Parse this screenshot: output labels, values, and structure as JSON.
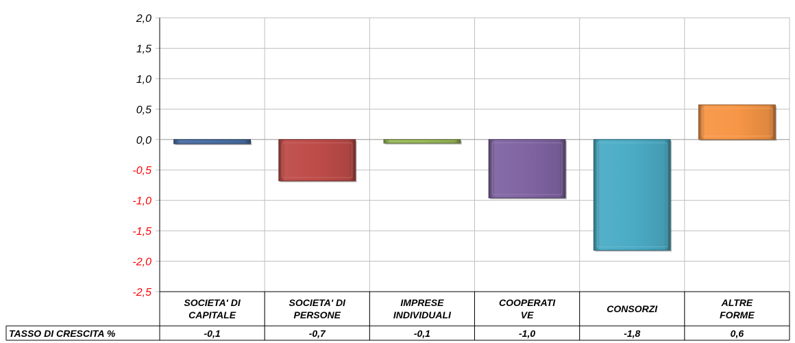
{
  "chart_data": {
    "type": "bar",
    "categories": [
      [
        "SOCIETA' DI",
        "CAPITALE"
      ],
      [
        "SOCIETA' DI",
        "PERSONE"
      ],
      [
        "IMPRESE",
        "INDIVIDUALI"
      ],
      [
        "COOPERATI",
        "VE"
      ],
      [
        "CONSORZI"
      ],
      [
        "ALTRE",
        "FORME"
      ]
    ],
    "values": [
      -0.07,
      -0.68,
      -0.06,
      -0.96,
      -1.82,
      0.57
    ],
    "data_table": {
      "row_label": "TASSO DI CRESCITA %",
      "values": [
        "-0,1",
        "-0,7",
        "-0,1",
        "-1,0",
        "-1,8",
        "0,6"
      ]
    },
    "ylim": [
      -2.5,
      2.0
    ],
    "yticks": [
      "2,0",
      "1,5",
      "1,0",
      "0,5",
      "0,0",
      "-0,5",
      "-1,0",
      "-1,5",
      "-2,0",
      "-2,5"
    ],
    "ytick_values": [
      2.0,
      1.5,
      1.0,
      0.5,
      0.0,
      -0.5,
      -1.0,
      -1.5,
      -2.0,
      -2.5
    ],
    "grid": true,
    "colors": [
      "#4a6fa5",
      "#be4b48",
      "#9bbb59",
      "#8064a2",
      "#4bacc6",
      "#f79646"
    ],
    "negative_tick_color": "#ff0000",
    "positive_tick_color": "#000000",
    "xlabel": "",
    "ylabel": ""
  }
}
